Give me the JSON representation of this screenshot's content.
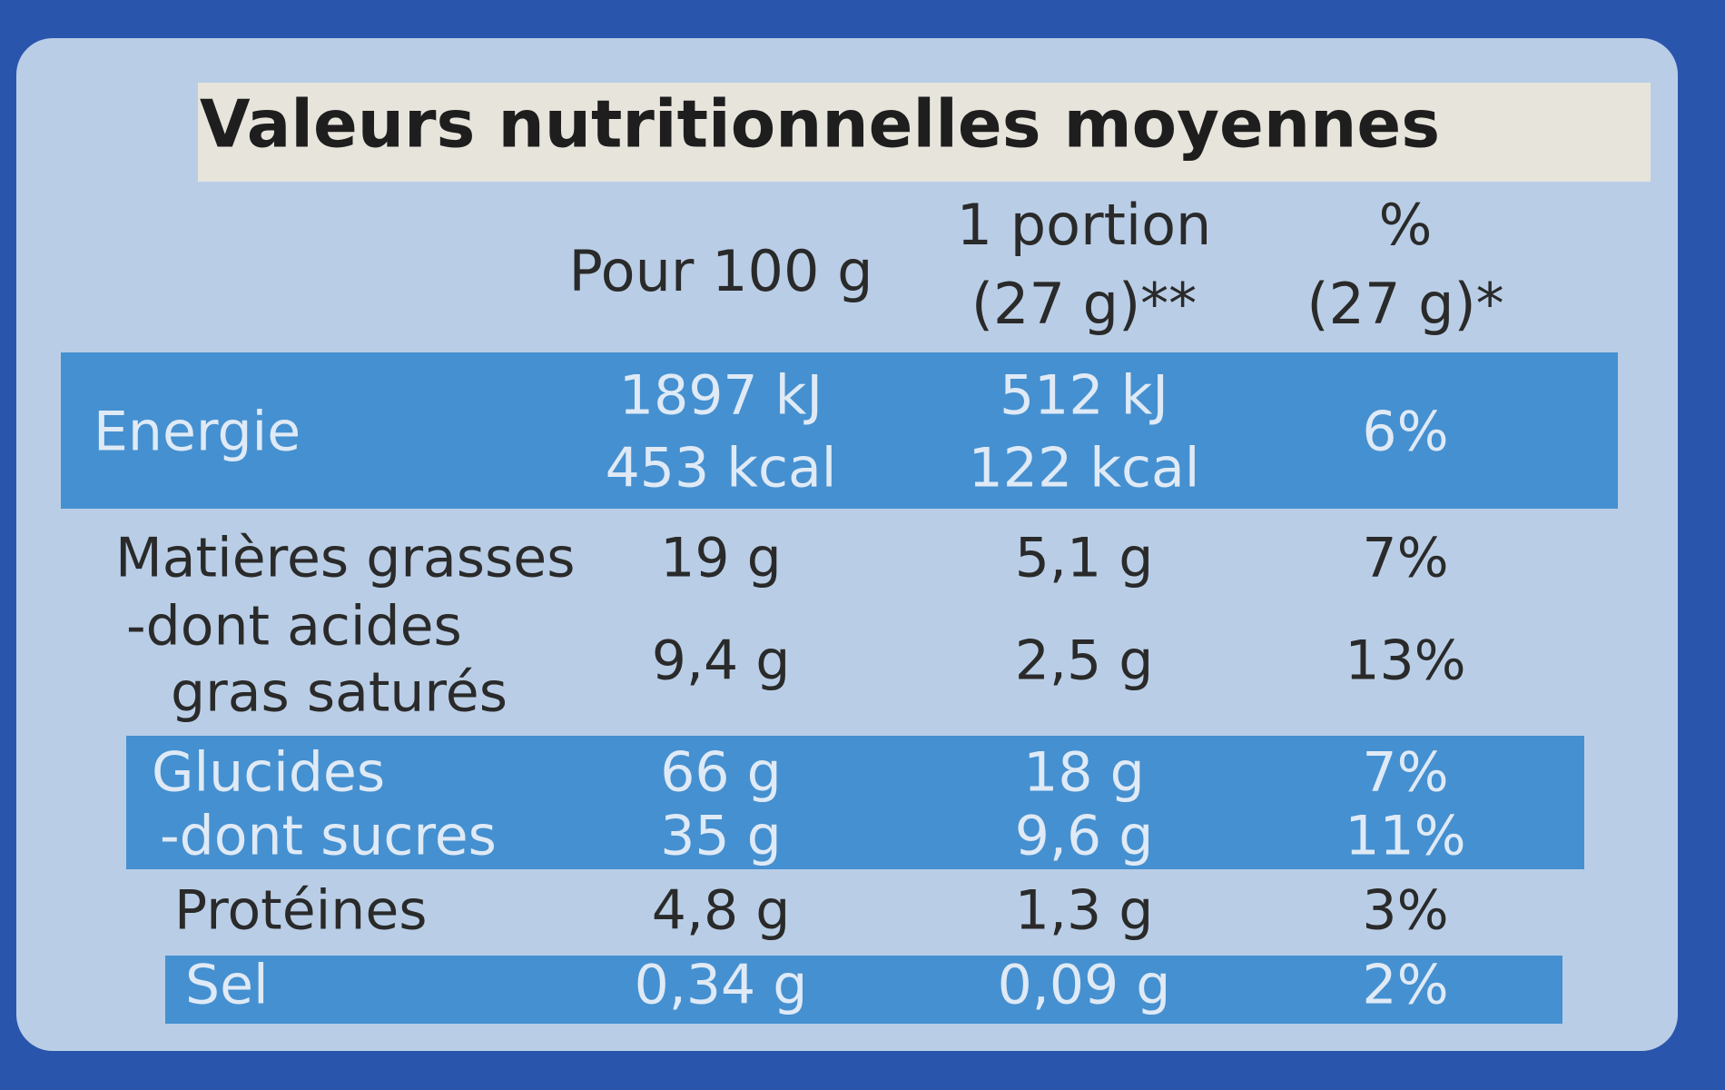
{
  "title": "Valeurs nutritionnelles moyennes",
  "table": {
    "header": [
      [
        "Pour 100 g"
      ],
      [
        "1 portion",
        "(27 g)**"
      ],
      [
        "%",
        "(27 g)*"
      ]
    ],
    "rows": [
      {
        "label": [
          "Energie"
        ],
        "cells": [
          [
            "1897 kJ",
            "453 kcal"
          ],
          [
            "512 kJ",
            "122 kcal"
          ],
          [
            "6%"
          ]
        ]
      },
      {
        "label": [
          "Matières grasses"
        ],
        "cells": [
          [
            "19 g"
          ],
          [
            "5,1 g"
          ],
          [
            "7%"
          ]
        ]
      },
      {
        "label": [
          "-dont acides",
          "gras saturés"
        ],
        "cells": [
          [
            "9,4 g"
          ],
          [
            "2,5 g"
          ],
          [
            "13%"
          ]
        ]
      },
      {
        "label": [
          "Glucides"
        ],
        "cells": [
          [
            "66 g"
          ],
          [
            "18 g"
          ],
          [
            "7%"
          ]
        ]
      },
      {
        "label": [
          "-dont sucres"
        ],
        "cells": [
          [
            "35 g"
          ],
          [
            "9,6 g"
          ],
          [
            "11%"
          ]
        ]
      },
      {
        "label": [
          "Protéines"
        ],
        "cells": [
          [
            "4,8 g"
          ],
          [
            "1,3 g"
          ],
          [
            "3%"
          ]
        ]
      },
      {
        "label": [
          "Sel"
        ],
        "cells": [
          [
            "0,34 g"
          ],
          [
            "0,09 g"
          ],
          [
            "2%"
          ]
        ]
      }
    ]
  }
}
